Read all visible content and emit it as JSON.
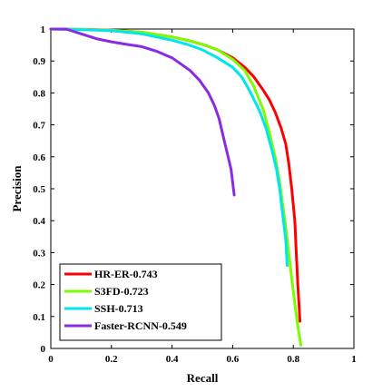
{
  "chart_data": {
    "type": "line",
    "title": "",
    "xlabel": "Recall",
    "ylabel": "Precision",
    "xlim": [
      0,
      1
    ],
    "ylim": [
      0,
      1
    ],
    "xticks": [
      "0",
      "0.2",
      "0.4",
      "0.6",
      "0.8",
      "1"
    ],
    "yticks": [
      "0",
      "0.1",
      "0.2",
      "0.3",
      "0.4",
      "0.5",
      "0.6",
      "0.7",
      "0.8",
      "0.9",
      "1"
    ],
    "grid": false,
    "legend_position": "bottom-left",
    "series": [
      {
        "name": "HR-ER-0.743",
        "color": "#ff0000",
        "points": [
          [
            0,
            1
          ],
          [
            0.1,
            0.999
          ],
          [
            0.2,
            0.997
          ],
          [
            0.3,
            0.99
          ],
          [
            0.4,
            0.975
          ],
          [
            0.45,
            0.965
          ],
          [
            0.5,
            0.952
          ],
          [
            0.55,
            0.935
          ],
          [
            0.6,
            0.91
          ],
          [
            0.64,
            0.88
          ],
          [
            0.67,
            0.85
          ],
          [
            0.7,
            0.81
          ],
          [
            0.72,
            0.78
          ],
          [
            0.74,
            0.74
          ],
          [
            0.76,
            0.69
          ],
          [
            0.775,
            0.64
          ],
          [
            0.785,
            0.58
          ],
          [
            0.795,
            0.5
          ],
          [
            0.8,
            0.45
          ],
          [
            0.805,
            0.4
          ],
          [
            0.81,
            0.3
          ],
          [
            0.815,
            0.2
          ],
          [
            0.82,
            0.12
          ],
          [
            0.822,
            0.085
          ]
        ]
      },
      {
        "name": "S3FD-0.723",
        "color": "#7cfc00",
        "points": [
          [
            0,
            1
          ],
          [
            0.1,
            0.999
          ],
          [
            0.2,
            0.996
          ],
          [
            0.3,
            0.99
          ],
          [
            0.4,
            0.975
          ],
          [
            0.45,
            0.965
          ],
          [
            0.5,
            0.952
          ],
          [
            0.55,
            0.935
          ],
          [
            0.6,
            0.905
          ],
          [
            0.64,
            0.87
          ],
          [
            0.67,
            0.82
          ],
          [
            0.7,
            0.75
          ],
          [
            0.72,
            0.68
          ],
          [
            0.74,
            0.6
          ],
          [
            0.755,
            0.52
          ],
          [
            0.765,
            0.45
          ],
          [
            0.775,
            0.38
          ],
          [
            0.785,
            0.3
          ],
          [
            0.795,
            0.22
          ],
          [
            0.805,
            0.14
          ],
          [
            0.815,
            0.07
          ],
          [
            0.825,
            0.01
          ]
        ]
      },
      {
        "name": "SSH-0.713",
        "color": "#00e5ee",
        "points": [
          [
            0,
            1
          ],
          [
            0.1,
            0.998
          ],
          [
            0.2,
            0.995
          ],
          [
            0.3,
            0.985
          ],
          [
            0.35,
            0.975
          ],
          [
            0.4,
            0.965
          ],
          [
            0.45,
            0.952
          ],
          [
            0.5,
            0.935
          ],
          [
            0.55,
            0.91
          ],
          [
            0.6,
            0.88
          ],
          [
            0.63,
            0.85
          ],
          [
            0.66,
            0.8
          ],
          [
            0.69,
            0.74
          ],
          [
            0.71,
            0.69
          ],
          [
            0.73,
            0.62
          ],
          [
            0.745,
            0.56
          ],
          [
            0.755,
            0.5
          ],
          [
            0.765,
            0.42
          ],
          [
            0.775,
            0.34
          ],
          [
            0.78,
            0.26
          ]
        ]
      },
      {
        "name": "Faster-RCNN-0.549",
        "color": "#8a2be2",
        "points": [
          [
            0,
            1
          ],
          [
            0.05,
            1
          ],
          [
            0.1,
            0.985
          ],
          [
            0.15,
            0.97
          ],
          [
            0.2,
            0.96
          ],
          [
            0.25,
            0.952
          ],
          [
            0.3,
            0.945
          ],
          [
            0.35,
            0.93
          ],
          [
            0.4,
            0.91
          ],
          [
            0.43,
            0.89
          ],
          [
            0.46,
            0.87
          ],
          [
            0.49,
            0.84
          ],
          [
            0.52,
            0.8
          ],
          [
            0.54,
            0.76
          ],
          [
            0.555,
            0.72
          ],
          [
            0.565,
            0.68
          ],
          [
            0.575,
            0.64
          ],
          [
            0.585,
            0.6
          ],
          [
            0.595,
            0.56
          ],
          [
            0.6,
            0.52
          ],
          [
            0.605,
            0.48
          ]
        ]
      }
    ]
  }
}
